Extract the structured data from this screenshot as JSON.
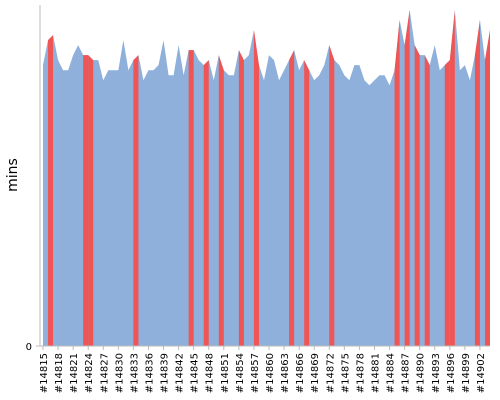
{
  "chart_data": {
    "type": "area",
    "ylabel": "mins",
    "categories": [
      "#14815",
      null,
      null,
      "#14818",
      null,
      null,
      "#14821",
      null,
      null,
      "#14824",
      null,
      null,
      "#14827",
      null,
      null,
      "#14830",
      null,
      null,
      "#14833",
      null,
      null,
      "#14836",
      null,
      null,
      "#14839",
      null,
      null,
      "#14842",
      null,
      null,
      "#14845",
      null,
      null,
      "#14848",
      null,
      null,
      "#14851",
      null,
      null,
      "#14854",
      null,
      null,
      "#14857",
      null,
      null,
      "#14860",
      null,
      null,
      "#14863",
      null,
      null,
      "#14866",
      null,
      null,
      "#14869",
      null,
      null,
      "#14872",
      null,
      null,
      "#14875",
      null,
      null,
      "#14878",
      null,
      null,
      "#14881",
      null,
      null,
      "#14884",
      null,
      null,
      "#14887",
      null,
      null,
      "#14890",
      null,
      null,
      "#14893",
      null,
      null,
      "#14896",
      null,
      null,
      "#14899",
      null,
      null,
      "#14902",
      null,
      null
    ],
    "values": [
      56,
      61,
      62,
      57,
      55,
      55,
      58,
      60,
      58,
      58,
      57,
      57,
      53,
      55,
      55,
      55,
      61,
      55,
      57,
      58,
      53,
      55,
      55,
      56,
      61,
      54,
      54,
      60,
      54,
      59,
      59,
      57,
      56,
      57,
      53,
      58,
      55,
      54,
      54,
      59,
      57,
      58,
      63,
      56,
      53,
      58,
      57,
      53,
      55,
      57,
      59,
      55,
      57,
      55,
      53,
      54,
      56,
      60,
      57,
      56,
      54,
      53,
      56,
      56,
      53,
      52,
      53,
      54,
      54,
      52,
      55,
      65,
      60,
      67,
      60,
      58,
      58,
      56,
      60,
      55,
      56,
      57,
      67,
      55,
      56,
      53,
      58,
      65,
      57,
      63
    ],
    "color": "#8eb0da",
    "point_colors": [
      "#8eb0da",
      "#f05555",
      "#8eb0da",
      "#8eb0da",
      "#8eb0da",
      "#8eb0da",
      "#8eb0da",
      "#8eb0da",
      "#f05555",
      "#f05555",
      "#8eb0da",
      "#8eb0da",
      "#8eb0da",
      "#8eb0da",
      "#8eb0da",
      "#8eb0da",
      "#8eb0da",
      "#8eb0da",
      "#f05555",
      "#8eb0da",
      "#8eb0da",
      "#8eb0da",
      "#8eb0da",
      "#8eb0da",
      "#8eb0da",
      "#8eb0da",
      "#8eb0da",
      "#8eb0da",
      "#8eb0da",
      "#f05555",
      "#8eb0da",
      "#8eb0da",
      "#f05555",
      "#8eb0da",
      "#8eb0da",
      "#f05555",
      "#8eb0da",
      "#8eb0da",
      "#8eb0da",
      "#f05555",
      "#8eb0da",
      "#8eb0da",
      "#f05555",
      "#8eb0da",
      "#8eb0da",
      "#8eb0da",
      "#8eb0da",
      "#8eb0da",
      "#8eb0da",
      "#f05555",
      "#8eb0da",
      "#8eb0da",
      "#f05555",
      "#8eb0da",
      "#8eb0da",
      "#8eb0da",
      "#8eb0da",
      "#f05555",
      "#8eb0da",
      "#8eb0da",
      "#8eb0da",
      "#8eb0da",
      "#8eb0da",
      "#8eb0da",
      "#8eb0da",
      "#8eb0da",
      "#8eb0da",
      "#8eb0da",
      "#8eb0da",
      "#8eb0da",
      "#f05555",
      "#8eb0da",
      "#f05555",
      "#8eb0da",
      "#f05555",
      "#8eb0da",
      "#f05555",
      "#8eb0da",
      "#8eb0da",
      "#8eb0da",
      "#f05555",
      "#f05555",
      "#8eb0da",
      "#8eb0da",
      "#8eb0da",
      "#8eb0da",
      "#f05555",
      "#8eb0da",
      "#f05555",
      "#8eb0da"
    ],
    "ylim": [
      0,
      68
    ],
    "yticks": [
      0
    ]
  }
}
